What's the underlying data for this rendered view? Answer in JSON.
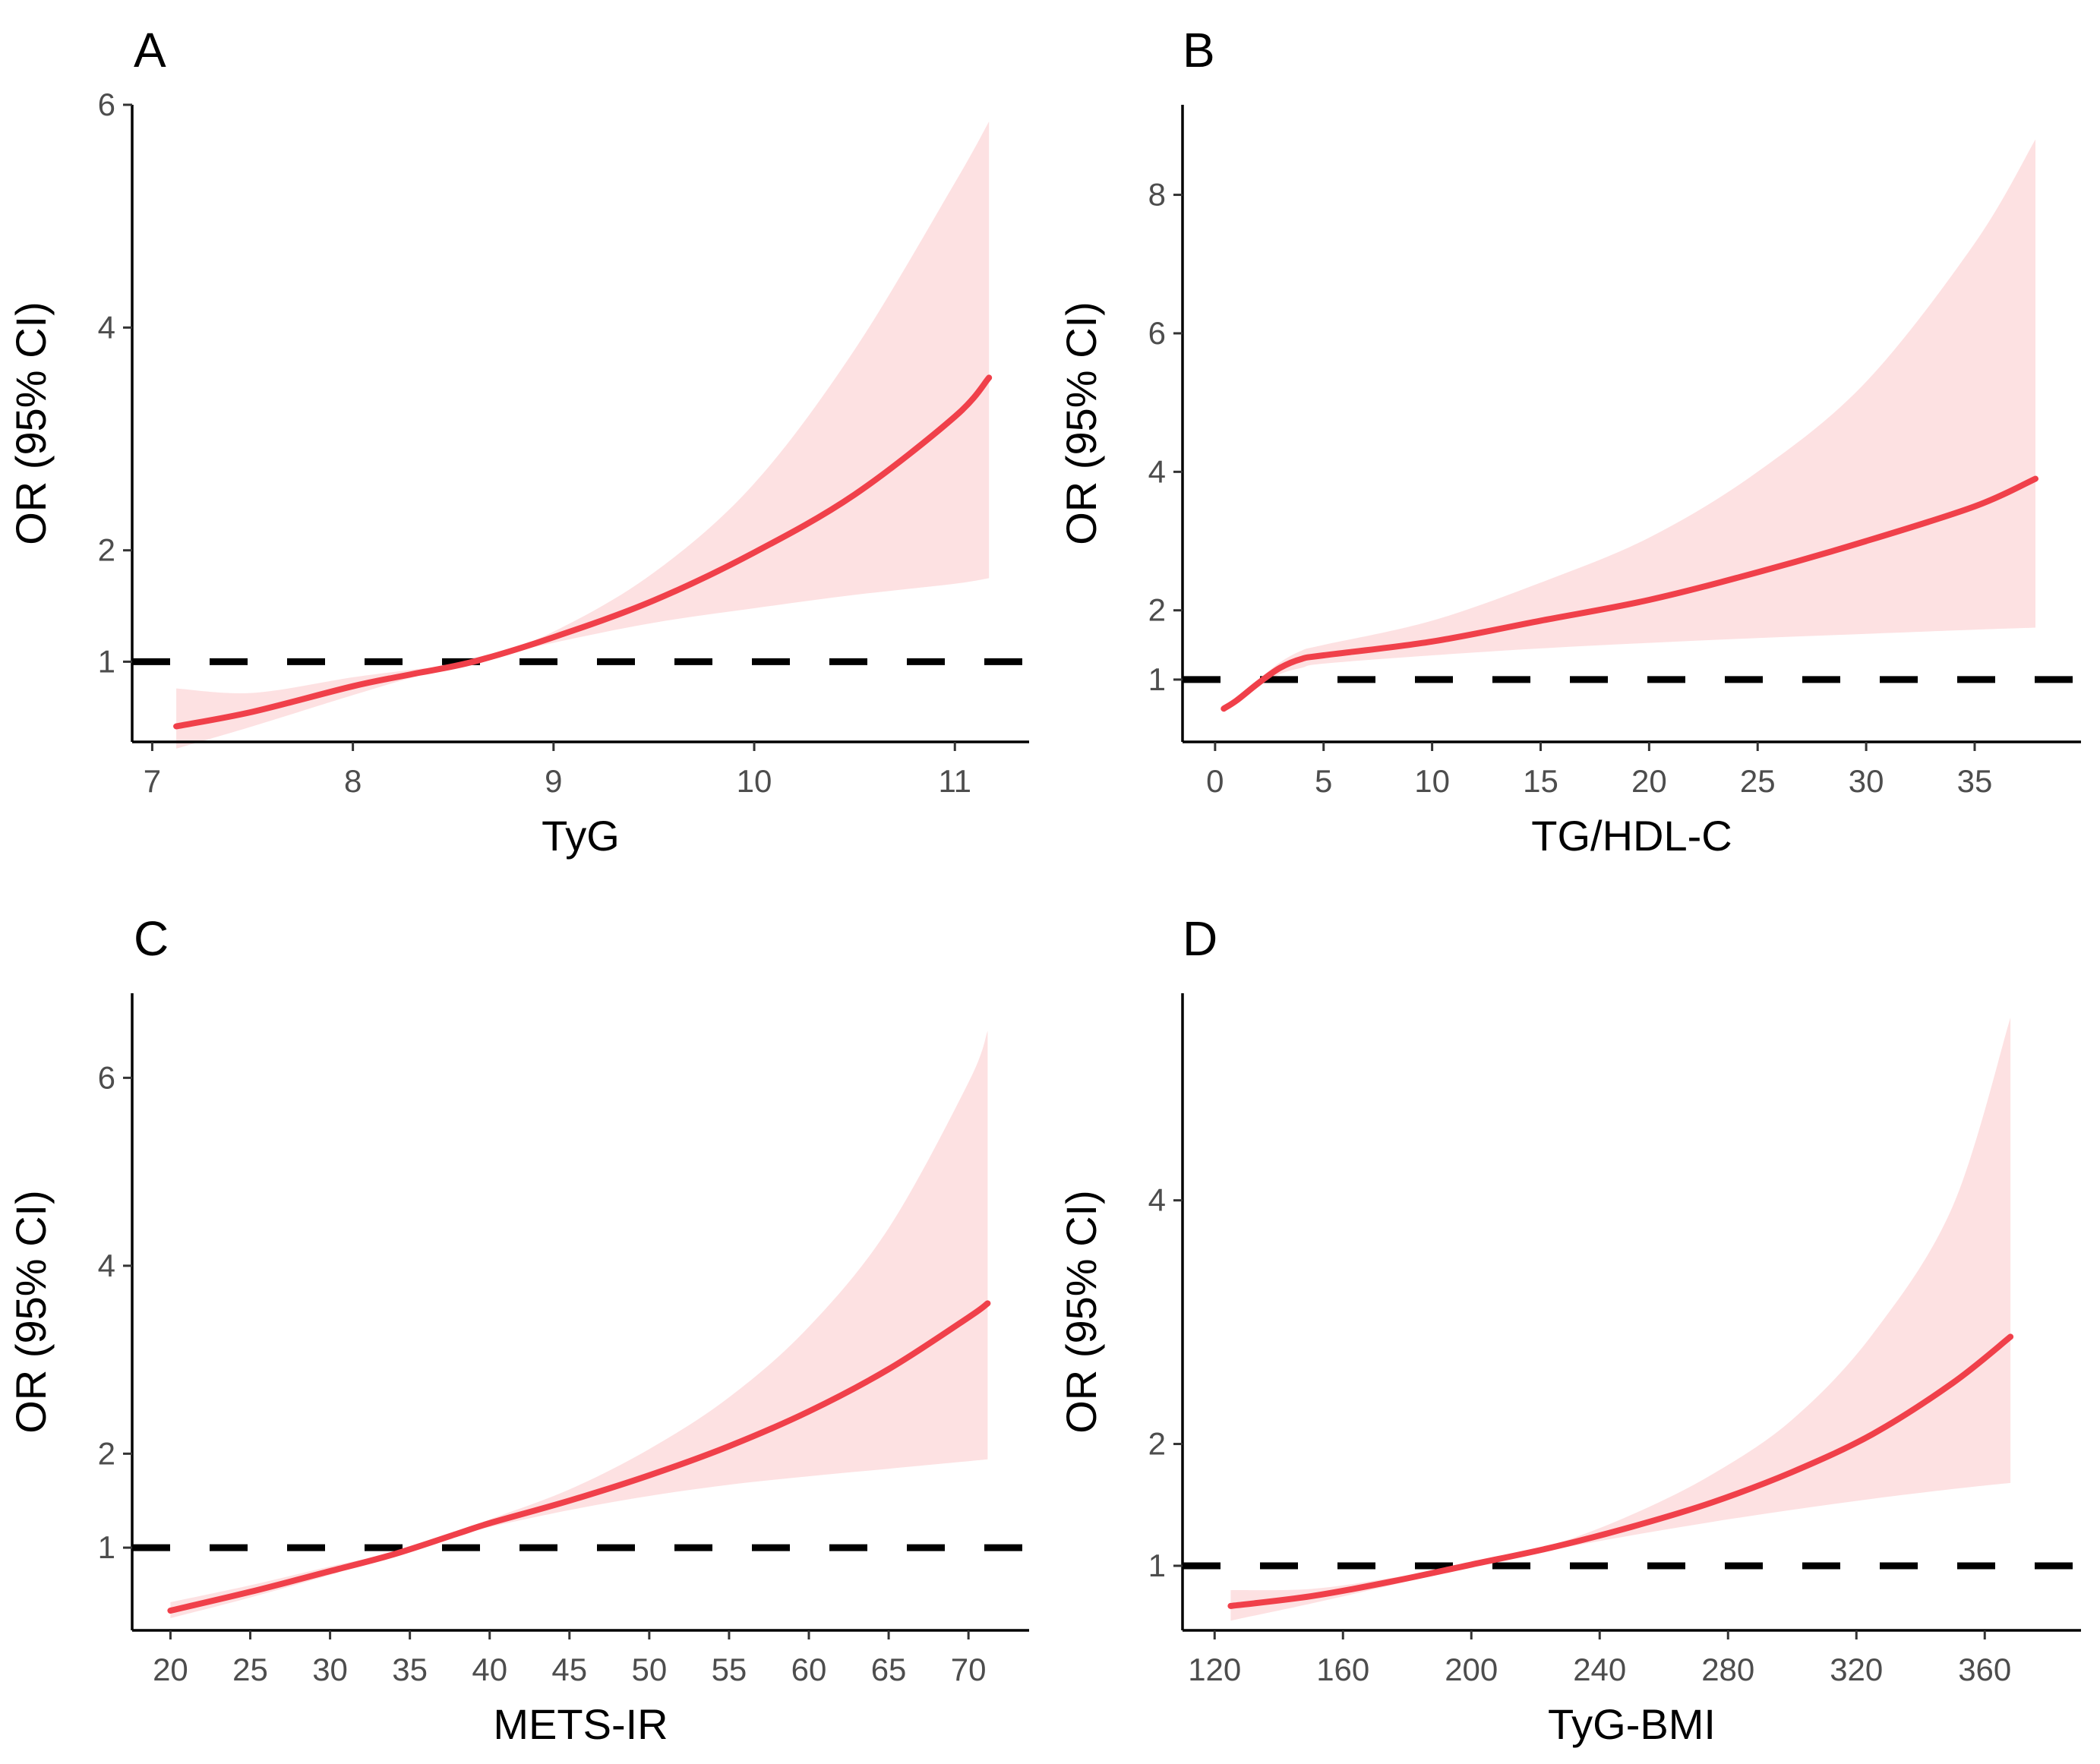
{
  "colors": {
    "curve": "#f0404a",
    "band": "#fde1e2",
    "reference": "#000000"
  },
  "chart_data": [
    {
      "type": "line",
      "panel": "A",
      "xlabel": "TyG",
      "ylabel": "OR (95% CI)",
      "xlim": [
        6.9,
        11.37
      ],
      "ylim": [
        0.28,
        6.0
      ],
      "xticks": [
        7,
        8,
        9,
        10,
        11
      ],
      "yticks": [
        1,
        2,
        4,
        6
      ],
      "reference_line": 1,
      "series": [
        {
          "name": "OR",
          "x": [
            7.12,
            7.5,
            8.0,
            8.3,
            8.6,
            9.0,
            9.5,
            10.0,
            10.5,
            11.0,
            11.17
          ],
          "y": [
            0.42,
            0.55,
            0.78,
            0.89,
            1.0,
            1.22,
            1.55,
            1.98,
            2.5,
            3.2,
            3.55
          ]
        },
        {
          "name": "Lower 95% CI",
          "x": [
            7.12,
            7.5,
            8.0,
            8.3,
            8.6,
            9.0,
            9.5,
            10.0,
            10.5,
            11.0,
            11.17
          ],
          "y": [
            0.22,
            0.42,
            0.7,
            0.86,
            1.0,
            1.17,
            1.35,
            1.48,
            1.6,
            1.7,
            1.75
          ]
        },
        {
          "name": "Upper 95% CI",
          "x": [
            7.12,
            7.5,
            8.0,
            8.3,
            8.6,
            9.0,
            9.5,
            10.0,
            10.5,
            11.0,
            11.17
          ],
          "y": [
            0.76,
            0.72,
            0.86,
            0.93,
            1.0,
            1.27,
            1.8,
            2.6,
            3.8,
            5.3,
            5.85
          ]
        }
      ]
    },
    {
      "type": "line",
      "panel": "B",
      "xlabel": "TG/HDL-C",
      "ylabel": "OR (95% CI)",
      "xlim": [
        -1.5,
        39.9
      ],
      "ylim": [
        0.1,
        9.3
      ],
      "xticks": [
        0,
        5,
        10,
        15,
        20,
        25,
        30,
        35
      ],
      "yticks": [
        1,
        2,
        4,
        6,
        8
      ],
      "reference_line": 1,
      "series": [
        {
          "name": "OR",
          "x": [
            0.4,
            1.0,
            2.0,
            3.0,
            4.0,
            5.0,
            10,
            15,
            20,
            25,
            30,
            35,
            37.8
          ],
          "y": [
            0.58,
            0.7,
            0.95,
            1.17,
            1.3,
            1.35,
            1.55,
            1.85,
            2.15,
            2.55,
            3.0,
            3.5,
            3.9
          ]
        },
        {
          "name": "Lower 95% CI",
          "x": [
            0.4,
            1.0,
            2.0,
            3.0,
            4.0,
            5.0,
            10,
            15,
            20,
            25,
            30,
            35,
            37.8
          ],
          "y": [
            0.55,
            0.67,
            0.9,
            1.08,
            1.17,
            1.23,
            1.35,
            1.45,
            1.53,
            1.6,
            1.66,
            1.72,
            1.75
          ]
        },
        {
          "name": "Upper 95% CI",
          "x": [
            0.4,
            1.0,
            2.0,
            3.0,
            4.0,
            5.0,
            10,
            15,
            20,
            25,
            30,
            35,
            37.8
          ],
          "y": [
            0.62,
            0.73,
            1.0,
            1.25,
            1.42,
            1.5,
            1.85,
            2.4,
            3.05,
            4.0,
            5.3,
            7.3,
            8.8
          ]
        }
      ]
    },
    {
      "type": "line",
      "panel": "C",
      "xlabel": "METS-IR",
      "ylabel": "OR (95% CI)",
      "xlim": [
        17.6,
        73.8
      ],
      "ylim": [
        0.12,
        6.9
      ],
      "xticks": [
        20,
        25,
        30,
        35,
        40,
        45,
        50,
        55,
        60,
        65,
        70
      ],
      "yticks": [
        1,
        2,
        4,
        6
      ],
      "reference_line": 1,
      "series": [
        {
          "name": "OR",
          "x": [
            20,
            25,
            30,
            34,
            38,
            40,
            45,
            50,
            55,
            60,
            65,
            70,
            71.2
          ],
          "y": [
            0.33,
            0.53,
            0.75,
            0.93,
            1.15,
            1.26,
            1.5,
            1.77,
            2.08,
            2.45,
            2.9,
            3.45,
            3.6
          ]
        },
        {
          "name": "Lower 95% CI",
          "x": [
            20,
            25,
            30,
            34,
            38,
            40,
            45,
            50,
            55,
            60,
            65,
            70,
            71.2
          ],
          "y": [
            0.25,
            0.47,
            0.71,
            0.92,
            1.13,
            1.22,
            1.4,
            1.55,
            1.67,
            1.76,
            1.84,
            1.92,
            1.94
          ]
        },
        {
          "name": "Upper 95% CI",
          "x": [
            20,
            25,
            30,
            34,
            38,
            40,
            45,
            50,
            55,
            60,
            65,
            70,
            71.2
          ],
          "y": [
            0.42,
            0.6,
            0.8,
            0.95,
            1.17,
            1.3,
            1.62,
            2.05,
            2.6,
            3.35,
            4.4,
            5.95,
            6.5
          ]
        }
      ]
    },
    {
      "type": "line",
      "panel": "D",
      "xlabel": "TyG-BMI",
      "ylabel": "OR (95% CI)",
      "xlim": [
        110,
        390
      ],
      "ylim": [
        0.47,
        5.7
      ],
      "xticks": [
        120,
        160,
        200,
        240,
        280,
        320,
        360
      ],
      "yticks": [
        1,
        2,
        4
      ],
      "reference_line": 1,
      "series": [
        {
          "name": "OR",
          "x": [
            125,
            150,
            175,
            200,
            225,
            250,
            275,
            300,
            325,
            350,
            368
          ],
          "y": [
            0.67,
            0.75,
            0.87,
            1.01,
            1.15,
            1.32,
            1.52,
            1.77,
            2.08,
            2.5,
            2.88
          ]
        },
        {
          "name": "Lower 95% CI",
          "x": [
            125,
            150,
            175,
            200,
            225,
            250,
            275,
            300,
            325,
            350,
            368
          ],
          "y": [
            0.55,
            0.69,
            0.84,
            1.0,
            1.13,
            1.25,
            1.36,
            1.46,
            1.55,
            1.63,
            1.68
          ]
        },
        {
          "name": "Upper 95% CI",
          "x": [
            125,
            150,
            175,
            200,
            225,
            250,
            275,
            300,
            325,
            350,
            368
          ],
          "y": [
            0.8,
            0.81,
            0.9,
            1.02,
            1.17,
            1.42,
            1.75,
            2.2,
            2.9,
            3.95,
            5.5
          ]
        }
      ]
    }
  ]
}
